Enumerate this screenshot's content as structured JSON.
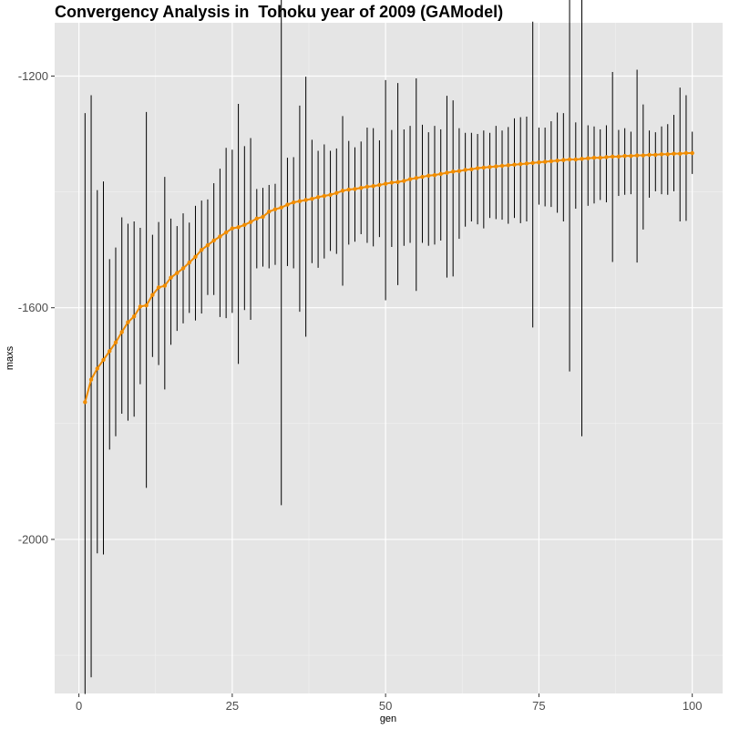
{
  "chart_data": {
    "type": "line",
    "title": "Convergency Analysis in  Tohoku year of 2009 (GAModel)",
    "xlabel": "gen",
    "ylabel": "maxs",
    "xlim": [
      -3.95,
      104.95
    ],
    "ylim": [
      -2266,
      -1108
    ],
    "xticks": [
      0,
      25,
      50,
      75,
      100
    ],
    "xtick_labels": [
      "0",
      "25",
      "50",
      "75",
      "100"
    ],
    "yticks": [
      -2000,
      -1600,
      -1200
    ],
    "ytick_labels": [
      "-2000",
      "-1600",
      "-1200"
    ],
    "grid": true,
    "colors": {
      "panel": "#e5e5e5",
      "grid_major": "#ffffff",
      "grid_minor": "#f2f2f2",
      "line": "#f08c00",
      "errorbar": "#000000"
    },
    "x": [
      1,
      2,
      3,
      4,
      5,
      6,
      7,
      8,
      9,
      10,
      11,
      12,
      13,
      14,
      15,
      16,
      17,
      18,
      19,
      20,
      21,
      22,
      23,
      24,
      25,
      26,
      27,
      28,
      29,
      30,
      31,
      32,
      33,
      34,
      35,
      36,
      37,
      38,
      39,
      40,
      41,
      42,
      43,
      44,
      45,
      46,
      47,
      48,
      49,
      50,
      51,
      52,
      53,
      54,
      55,
      56,
      57,
      58,
      59,
      60,
      61,
      62,
      63,
      64,
      65,
      66,
      67,
      68,
      69,
      70,
      71,
      72,
      73,
      74,
      75,
      76,
      77,
      78,
      79,
      80,
      81,
      82,
      83,
      84,
      85,
      86,
      87,
      88,
      89,
      90,
      91,
      92,
      93,
      94,
      95,
      96,
      97,
      98,
      99,
      100
    ],
    "series": [
      {
        "values": [
          -1763,
          -1724,
          -1705,
          -1690,
          -1675,
          -1660,
          -1642,
          -1625,
          -1615,
          -1598,
          -1596,
          -1578,
          -1565,
          -1562,
          -1548,
          -1540,
          -1532,
          -1522,
          -1512,
          -1500,
          -1492,
          -1484,
          -1477,
          -1470,
          -1463,
          -1461,
          -1457,
          -1452,
          -1446,
          -1443,
          -1434,
          -1430,
          -1427,
          -1422,
          -1418,
          -1416,
          -1414,
          -1412,
          -1409,
          -1407,
          -1405,
          -1402,
          -1398,
          -1396,
          -1395,
          -1393,
          -1391,
          -1390,
          -1388,
          -1386,
          -1384,
          -1383,
          -1381,
          -1378,
          -1376,
          -1374,
          -1372,
          -1371,
          -1369,
          -1367,
          -1365,
          -1364,
          -1362,
          -1361,
          -1359,
          -1358,
          -1357,
          -1356,
          -1355,
          -1354,
          -1353,
          -1352,
          -1351,
          -1350,
          -1349,
          -1348,
          -1347,
          -1346,
          -1345,
          -1344,
          -1344,
          -1343,
          -1342,
          -1341,
          -1341,
          -1340,
          -1339,
          -1339,
          -1338,
          -1338,
          -1337,
          -1337,
          -1336,
          -1336,
          -1335,
          -1335,
          -1334,
          -1334,
          -1333,
          -1333
        ],
        "lower": [
          -2267,
          -2238,
          -2024,
          -2026,
          -1845,
          -1822,
          -1783,
          -1795,
          -1788,
          -1732,
          -1911,
          -1685,
          -1699,
          -1741,
          -1664,
          -1640,
          -1627,
          -1609,
          -1622,
          -1610,
          -1578,
          -1578,
          -1616,
          -1618,
          -1609,
          -1697,
          -1604,
          -1621,
          -1532,
          -1529,
          -1532,
          -1526,
          -1941,
          -1528,
          -1532,
          -1607,
          -1650,
          -1523,
          -1531,
          -1515,
          -1502,
          -1507,
          -1562,
          -1491,
          -1486,
          -1473,
          -1488,
          -1494,
          -1478,
          -1587,
          -1495,
          -1561,
          -1493,
          -1488,
          -1571,
          -1488,
          -1493,
          -1491,
          -1484,
          -1548,
          -1546,
          -1481,
          -1460,
          -1451,
          -1456,
          -1463,
          -1445,
          -1447,
          -1448,
          -1455,
          -1445,
          -1454,
          -1451,
          -1634,
          -1422,
          -1425,
          -1426,
          -1436,
          -1451,
          -1710,
          -1429,
          -1822,
          -1424,
          -1420,
          -1414,
          -1418,
          -1521,
          -1407,
          -1405,
          -1404,
          -1522,
          -1465,
          -1410,
          -1399,
          -1404,
          -1405,
          -1399,
          -1451,
          -1450,
          -1369
        ],
        "upper": [
          -1264,
          -1233,
          -1397,
          -1382,
          -1516,
          -1496,
          -1444,
          -1455,
          -1451,
          -1462,
          -1262,
          -1474,
          -1452,
          -1374,
          -1446,
          -1459,
          -1437,
          -1453,
          -1424,
          -1415,
          -1413,
          -1385,
          -1360,
          -1324,
          -1327,
          -1248,
          -1321,
          -1307,
          -1395,
          -1393,
          -1388,
          -1386,
          -1068,
          -1341,
          -1340,
          -1251,
          -1201,
          -1310,
          -1329,
          -1318,
          -1329,
          -1325,
          -1269,
          -1312,
          -1323,
          -1313,
          -1289,
          -1290,
          -1311,
          -1207,
          -1293,
          -1212,
          -1292,
          -1286,
          -1204,
          -1284,
          -1297,
          -1286,
          -1292,
          -1234,
          -1242,
          -1290,
          -1298,
          -1298,
          -1300,
          -1294,
          -1298,
          -1286,
          -1294,
          -1288,
          -1273,
          -1271,
          -1270,
          -1106,
          -1289,
          -1289,
          -1278,
          -1263,
          -1264,
          -1013,
          -1280,
          -959,
          -1285,
          -1287,
          -1292,
          -1285,
          -1193,
          -1293,
          -1290,
          -1296,
          -1189,
          -1249,
          -1294,
          -1297,
          -1287,
          -1283,
          -1267,
          -1220,
          -1233,
          -1296
        ]
      }
    ]
  }
}
